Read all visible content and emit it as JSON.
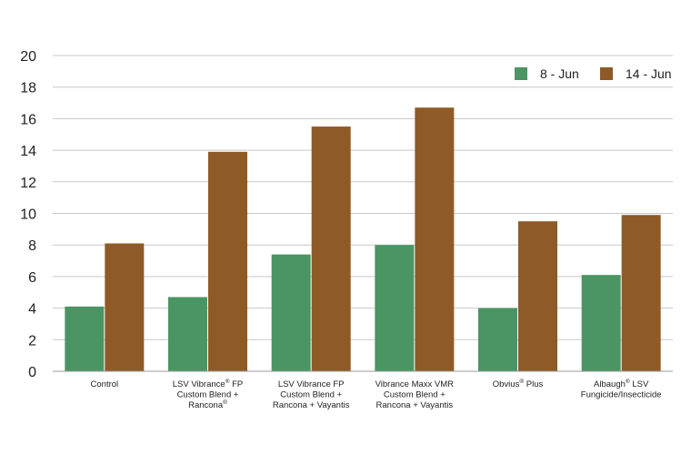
{
  "chart_data": {
    "type": "bar",
    "title": "",
    "xlabel": "",
    "ylabel": "",
    "ylim": [
      0,
      20
    ],
    "yticks": [
      0,
      2,
      4,
      6,
      8,
      10,
      12,
      14,
      16,
      18,
      20
    ],
    "grid": true,
    "legend_position": "top-right",
    "categories": [
      [
        "Control"
      ],
      [
        "LSV Vibrance® FP",
        "Custom Blend +",
        "Rancona®"
      ],
      [
        "LSV Vibrance FP",
        "Custom Blend +",
        "Rancona + Vayantis"
      ],
      [
        "Vibrance Maxx VMR",
        "Custom Blend +",
        "Rancona + Vayantis"
      ],
      [
        "Obvius® Plus"
      ],
      [
        "Albaugh® LSV",
        "Fungicide/Insecticide"
      ]
    ],
    "series": [
      {
        "name": "8 - Jun",
        "color": "#4a9563",
        "values": [
          4.1,
          4.7,
          7.4,
          8.0,
          4.0,
          6.1
        ]
      },
      {
        "name": "14 - Jun",
        "color": "#8e5a27",
        "values": [
          8.1,
          13.9,
          15.5,
          16.7,
          9.5,
          9.9
        ]
      }
    ]
  }
}
